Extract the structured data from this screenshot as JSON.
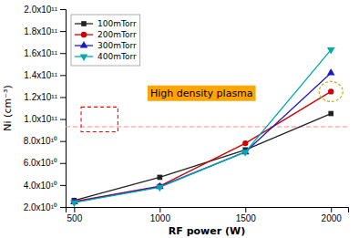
{
  "chart_data": {
    "type": "line",
    "x": [
      500,
      1000,
      1500,
      2000
    ],
    "series": [
      {
        "name": "100mTorr",
        "color": "#222222",
        "marker": "square",
        "line_style": "solid",
        "values": [
          26000000000.0,
          47000000000.0,
          72000000000.0,
          105000000000.0
        ]
      },
      {
        "name": "200mTorr",
        "color": "#cc0000",
        "marker": "circle",
        "line_style": "solid",
        "values": [
          25000000000.0,
          39000000000.0,
          78000000000.0,
          125000000000.0
        ]
      },
      {
        "name": "300mTorr",
        "color": "#1a1acc",
        "marker": "triangle-up",
        "line_style": "solid",
        "values": [
          24500000000.0,
          38500000000.0,
          70000000000.0,
          142000000000.0
        ]
      },
      {
        "name": "400mTorr",
        "color": "#00aaaa",
        "marker": "triangle-down",
        "line_style": "solid",
        "values": [
          24000000000.0,
          38000000000.0,
          70000000000.0,
          163000000000.0
        ]
      }
    ],
    "xlabel": "RF power (W)",
    "ylabel": "Ni (cm⁻³)",
    "xlim": [
      450,
      2100
    ],
    "ylim": [
      20000000000.0,
      200000000000.0
    ],
    "xticks": [
      500,
      1000,
      1500,
      2000
    ],
    "yticks": [
      {
        "value": 20000000000.0,
        "label": "2.0x10¹⁰"
      },
      {
        "value": 40000000000.0,
        "label": "4.0x10¹⁰"
      },
      {
        "value": 60000000000.0,
        "label": "6.0x10¹⁰"
      },
      {
        "value": 80000000000.0,
        "label": "8.0x10¹⁰"
      },
      {
        "value": 100000000000.0,
        "label": "1.0x10¹¹"
      },
      {
        "value": 120000000000.0,
        "label": "1.2x10¹¹"
      },
      {
        "value": 140000000000.0,
        "label": "1.4x10¹¹"
      },
      {
        "value": 160000000000.0,
        "label": "1.6x10¹¹"
      },
      {
        "value": 180000000000.0,
        "label": "1.8x10¹¹"
      },
      {
        "value": 200000000000.0,
        "label": "2.0x10¹¹"
      }
    ],
    "reference_line": {
      "y": 93000000000.0,
      "color": "#ff8888",
      "line_style": "dashed"
    },
    "annotations": [
      {
        "text": "High density plasma",
        "color": "#FFA500"
      }
    ],
    "legend": "upper left",
    "grid": false
  }
}
